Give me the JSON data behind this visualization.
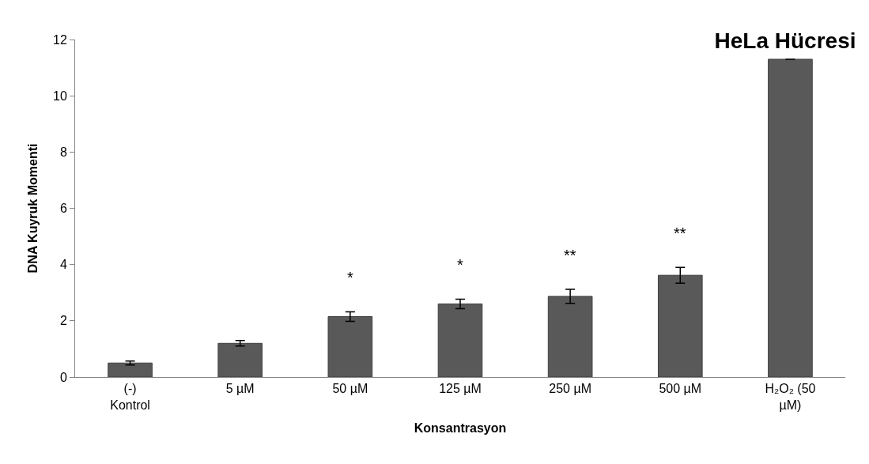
{
  "chart_data": {
    "type": "bar",
    "title": "HeLa Hücresi",
    "xlabel": "Konsantrasyon",
    "ylabel": "DNA Kuyruk Momenti",
    "categories": [
      "(-) Kontrol",
      "5 µM",
      "50 µM",
      "125 µM",
      "250 µM",
      "500 µM",
      "H₂O₂ (50 µM)"
    ],
    "values": [
      0.5,
      1.2,
      2.15,
      2.6,
      2.87,
      3.62,
      11.3
    ],
    "errors": [
      0.07,
      0.1,
      0.17,
      0.17,
      0.25,
      0.28,
      null
    ],
    "color": "#595959",
    "ylim": [
      0,
      12
    ],
    "yticks": [
      0,
      2,
      4,
      6,
      8,
      10,
      12
    ],
    "value_labels": [
      null,
      null,
      "*",
      "*",
      "**",
      "**",
      null
    ]
  }
}
